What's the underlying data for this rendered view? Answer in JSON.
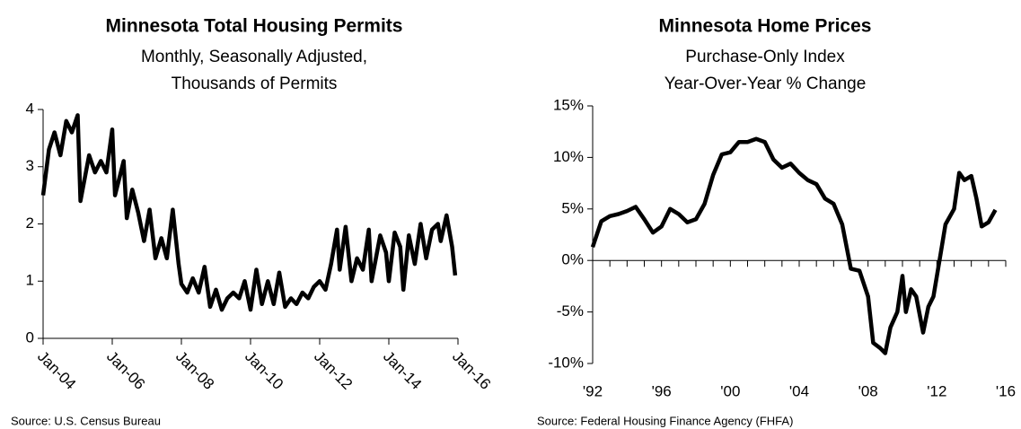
{
  "chart_data": [
    {
      "type": "line",
      "title": "Minnesota Total Housing Permits",
      "subtitle": [
        "Monthly, Seasonally Adjusted,",
        "Thousands of Permits"
      ],
      "source": "Source: U.S. Census Bureau",
      "x": [
        2004.0,
        2004.17,
        2004.33,
        2004.5,
        2004.67,
        2004.83,
        2005.0,
        2005.08,
        2005.33,
        2005.5,
        2005.67,
        2005.83,
        2006.0,
        2006.08,
        2006.33,
        2006.42,
        2006.58,
        2006.75,
        2006.92,
        2007.08,
        2007.25,
        2007.42,
        2007.58,
        2007.75,
        2007.92,
        2008.0,
        2008.17,
        2008.33,
        2008.5,
        2008.67,
        2008.83,
        2009.0,
        2009.17,
        2009.33,
        2009.5,
        2009.67,
        2009.83,
        2010.0,
        2010.17,
        2010.33,
        2010.5,
        2010.67,
        2010.83,
        2011.0,
        2011.17,
        2011.33,
        2011.5,
        2011.67,
        2011.83,
        2012.0,
        2012.17,
        2012.33,
        2012.5,
        2012.58,
        2012.75,
        2012.92,
        2013.08,
        2013.25,
        2013.42,
        2013.5,
        2013.75,
        2013.92,
        2014.0,
        2014.17,
        2014.33,
        2014.42,
        2014.58,
        2014.75,
        2014.92,
        2015.08,
        2015.25,
        2015.42,
        2015.5,
        2015.67,
        2015.83,
        2015.92
      ],
      "series": [
        {
          "name": "Total Housing Permits",
          "color": "#000000",
          "values": [
            2.5,
            3.3,
            3.6,
            3.2,
            3.8,
            3.6,
            3.9,
            2.4,
            3.2,
            2.9,
            3.1,
            2.9,
            3.65,
            2.5,
            3.1,
            2.1,
            2.6,
            2.2,
            1.7,
            2.25,
            1.4,
            1.75,
            1.4,
            2.25,
            1.3,
            0.95,
            0.8,
            1.05,
            0.8,
            1.25,
            0.55,
            0.85,
            0.5,
            0.7,
            0.8,
            0.7,
            1.0,
            0.5,
            1.2,
            0.6,
            1.0,
            0.6,
            1.15,
            0.55,
            0.7,
            0.6,
            0.8,
            0.7,
            0.9,
            1.0,
            0.85,
            1.3,
            1.9,
            1.2,
            1.95,
            1.0,
            1.4,
            1.2,
            1.9,
            1.0,
            1.8,
            1.5,
            1.0,
            1.85,
            1.6,
            0.85,
            1.8,
            1.3,
            2.0,
            1.4,
            1.9,
            2.0,
            1.7,
            2.15,
            1.6,
            1.1
          ]
        }
      ],
      "xlim": [
        2004,
        2016
      ],
      "xticks": [
        {
          "value": 2004,
          "label": "Jan-04"
        },
        {
          "value": 2006,
          "label": "Jan-06"
        },
        {
          "value": 2008,
          "label": "Jan-08"
        },
        {
          "value": 2010,
          "label": "Jan-10"
        },
        {
          "value": 2012,
          "label": "Jan-12"
        },
        {
          "value": 2014,
          "label": "Jan-14"
        },
        {
          "value": 2016,
          "label": "Jan-16"
        }
      ],
      "ylim": [
        0,
        4
      ],
      "yticks": [
        0,
        1,
        2,
        3,
        4
      ]
    },
    {
      "type": "line",
      "title": "Minnesota Home Prices",
      "subtitle": [
        "Purchase-Only Index",
        "Year-Over-Year % Change"
      ],
      "source": "Source: Federal Housing Finance Agency (FHFA)",
      "x": [
        1992.0,
        1992.5,
        1993.0,
        1993.5,
        1994.0,
        1994.5,
        1995.0,
        1995.5,
        1996.0,
        1996.5,
        1997.0,
        1997.5,
        1998.0,
        1998.5,
        1999.0,
        1999.5,
        2000.0,
        2000.5,
        2001.0,
        2001.5,
        2002.0,
        2002.5,
        2003.0,
        2003.5,
        2004.0,
        2004.5,
        2005.0,
        2005.5,
        2006.0,
        2006.5,
        2007.0,
        2007.5,
        2008.0,
        2008.3,
        2008.7,
        2009.0,
        2009.3,
        2009.7,
        2010.0,
        2010.2,
        2010.5,
        2010.8,
        2011.2,
        2011.5,
        2011.8,
        2012.2,
        2012.5,
        2013.0,
        2013.3,
        2013.6,
        2014.0,
        2014.3,
        2014.6,
        2015.0,
        2015.4
      ],
      "series": [
        {
          "name": "Home Prices YoY",
          "color": "#000000",
          "values": [
            1.3,
            3.8,
            4.3,
            4.5,
            4.8,
            5.2,
            4.0,
            2.7,
            3.3,
            5.0,
            4.5,
            3.7,
            4.0,
            5.5,
            8.3,
            10.3,
            10.5,
            11.5,
            11.5,
            11.8,
            11.5,
            9.8,
            9.0,
            9.4,
            8.5,
            7.8,
            7.4,
            6.0,
            5.5,
            3.5,
            -0.8,
            -1.0,
            -3.5,
            -8.0,
            -8.5,
            -9.0,
            -6.5,
            -5.0,
            -1.5,
            -5.0,
            -2.8,
            -3.5,
            -7.0,
            -4.5,
            -3.5,
            0.5,
            3.5,
            5.0,
            8.5,
            7.8,
            8.2,
            6.0,
            3.3,
            3.7,
            4.9
          ]
        }
      ],
      "xlim": [
        1992,
        2016
      ],
      "xticks": [
        {
          "value": 1992,
          "label": "'92"
        },
        {
          "value": 1996,
          "label": "'96"
        },
        {
          "value": 2000,
          "label": "'00"
        },
        {
          "value": 2004,
          "label": "'04"
        },
        {
          "value": 2008,
          "label": "'08"
        },
        {
          "value": 2012,
          "label": "'12"
        },
        {
          "value": 2016,
          "label": "'16"
        }
      ],
      "x_minor_ticks": [
        1992,
        1993,
        1994,
        1995,
        1996,
        1997,
        1998,
        1999,
        2000,
        2001,
        2002,
        2003,
        2004,
        2005,
        2006,
        2007,
        2008,
        2009,
        2010,
        2011,
        2012,
        2013,
        2014,
        2015,
        2016
      ],
      "ylim": [
        -10,
        15
      ],
      "yticks": [
        {
          "value": -10,
          "label": "-10%"
        },
        {
          "value": -5,
          "label": "-5%"
        },
        {
          "value": 0,
          "label": "0%"
        },
        {
          "value": 5,
          "label": "5%"
        },
        {
          "value": 10,
          "label": "10%"
        },
        {
          "value": 15,
          "label": "15%"
        }
      ]
    }
  ]
}
